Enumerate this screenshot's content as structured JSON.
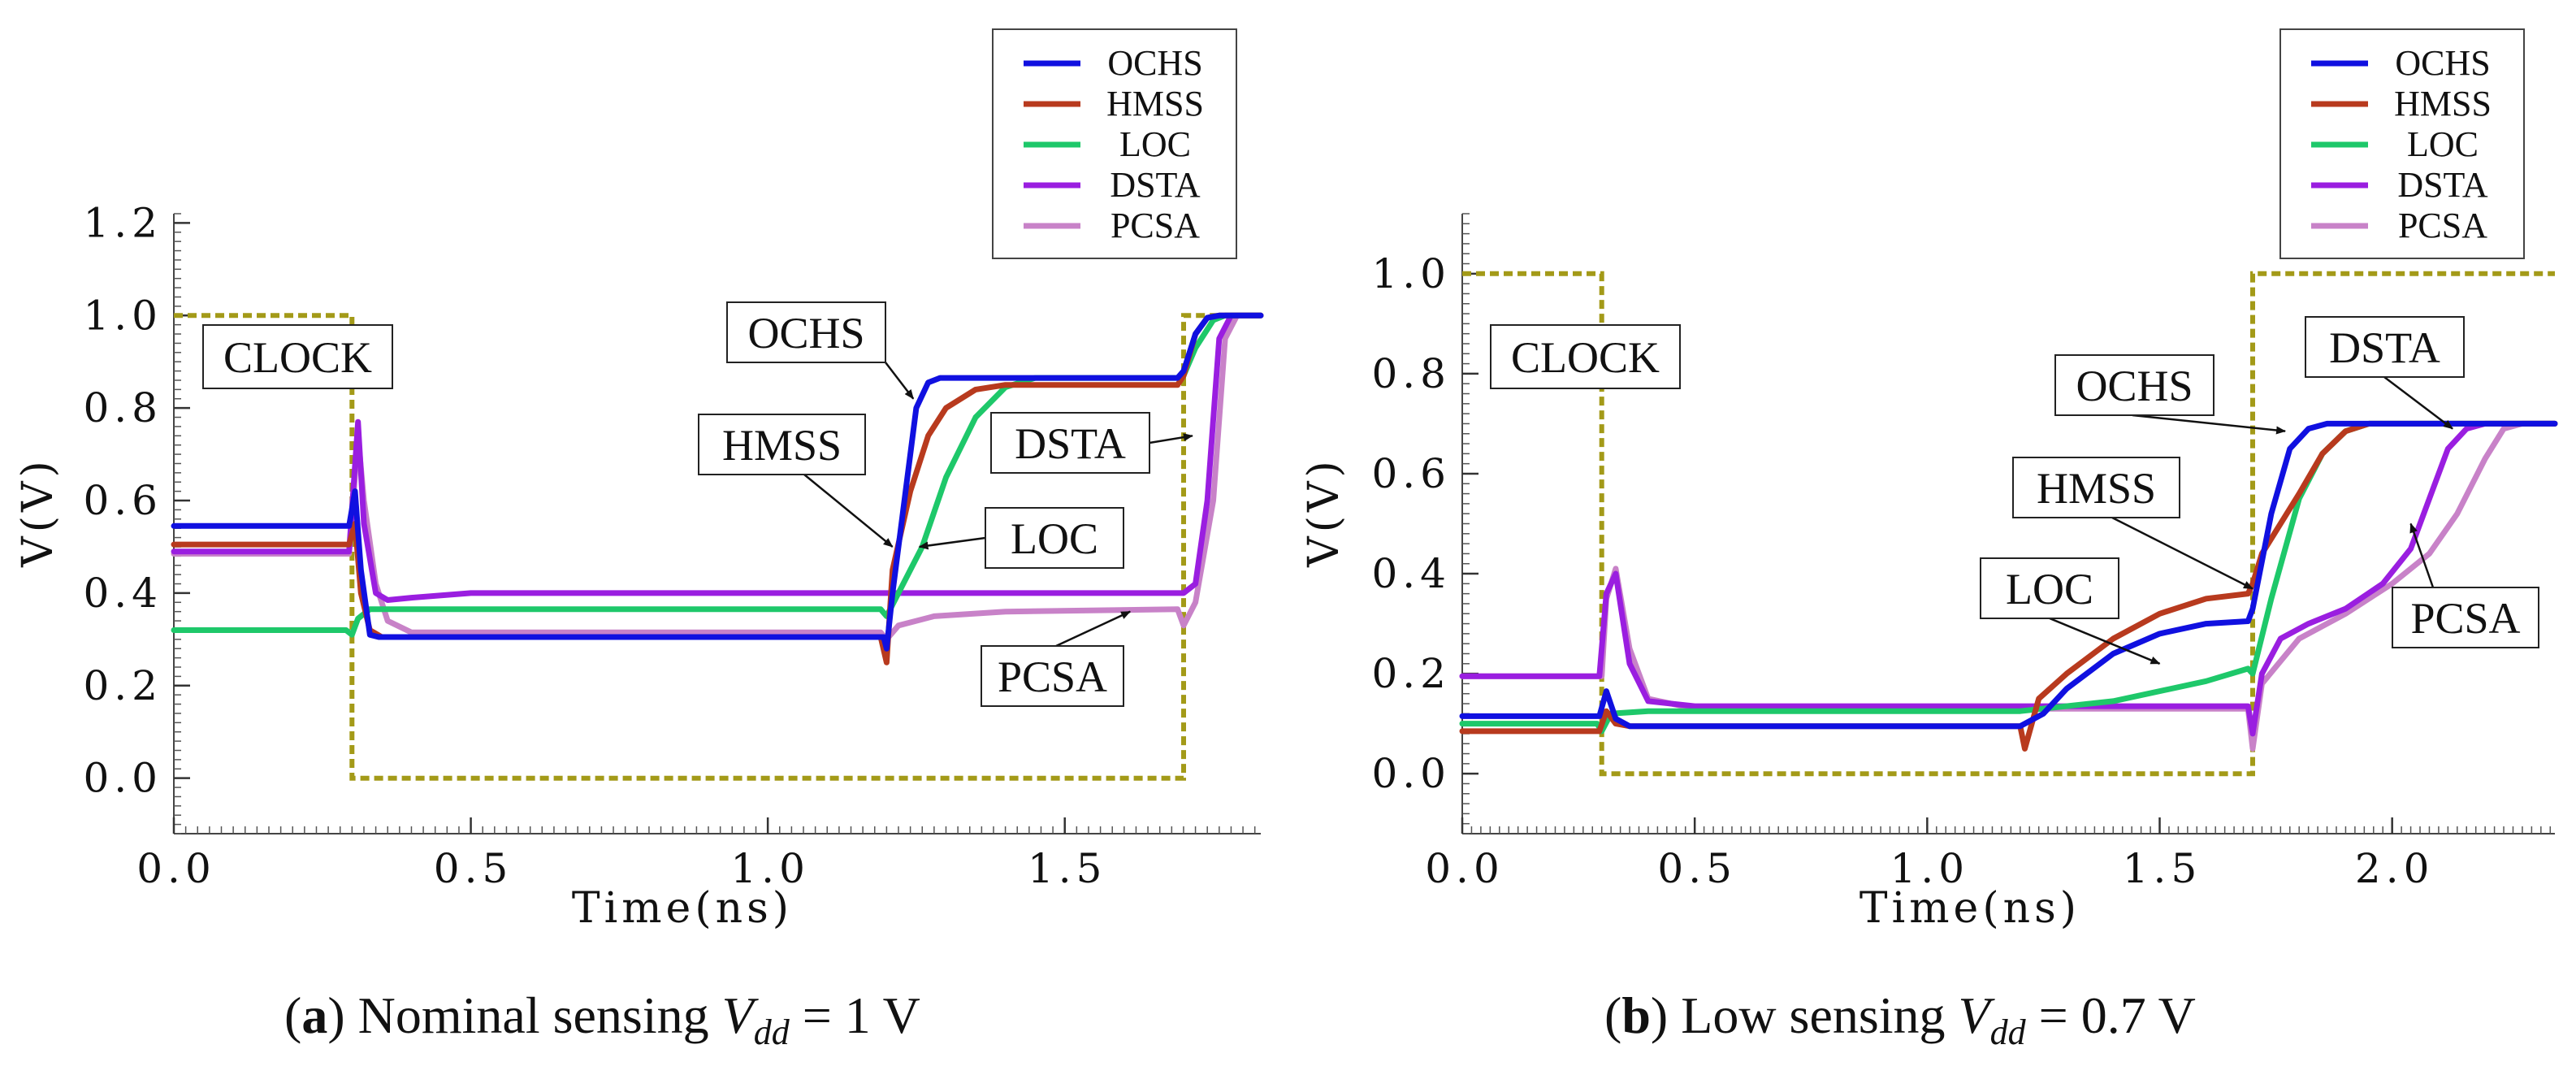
{
  "chart_data": [
    {
      "type": "line",
      "panel_label": "a",
      "caption_text": "Nominal sensing",
      "caption_var": "V",
      "caption_sub": "dd",
      "caption_value": "= 1 V",
      "xlabel": "Time(ns)",
      "ylabel": "V(V)",
      "xlim": [
        0,
        1.83
      ],
      "ylim": [
        -0.12,
        1.22
      ],
      "xticks": [
        0.0,
        0.5,
        1.0,
        1.5
      ],
      "xtick_labels": [
        "0.0",
        "0.5",
        "1.0",
        "1.5"
      ],
      "yticks": [
        0.0,
        0.2,
        0.4,
        0.6,
        0.8,
        1.0,
        1.2
      ],
      "ytick_labels": [
        "0.0",
        "0.2",
        "0.4",
        "0.6",
        "0.8",
        "1.0",
        "1.2"
      ],
      "legend": [
        "OCHS",
        "HMSS",
        "LOC",
        "DSTA",
        "PCSA"
      ],
      "legend_position": "top-right",
      "clock": {
        "name": "CLOCK",
        "color": "#a39a18",
        "x": [
          0,
          0.3,
          0.3,
          1.7,
          1.7,
          1.83
        ],
        "y": [
          1.0,
          1.0,
          0.0,
          0.0,
          1.0,
          1.0
        ]
      },
      "series": [
        {
          "name": "OCHS",
          "color": "#1010e0",
          "x": [
            0,
            0.295,
            0.305,
            0.315,
            0.33,
            0.345,
            0.5,
            1.0,
            1.195,
            1.2,
            1.21,
            1.23,
            1.25,
            1.27,
            1.29,
            1.35,
            1.69,
            1.7,
            1.72,
            1.74,
            1.76,
            1.83
          ],
          "y": [
            0.545,
            0.545,
            0.62,
            0.45,
            0.31,
            0.305,
            0.305,
            0.305,
            0.305,
            0.28,
            0.4,
            0.6,
            0.8,
            0.855,
            0.865,
            0.865,
            0.865,
            0.88,
            0.96,
            0.995,
            1.0,
            1.0
          ]
        },
        {
          "name": "HMSS",
          "color": "#b83a1e",
          "x": [
            0,
            0.295,
            0.305,
            0.315,
            0.33,
            0.35,
            0.5,
            1.0,
            1.19,
            1.2,
            1.21,
            1.24,
            1.27,
            1.3,
            1.35,
            1.4,
            1.69,
            1.7,
            1.72,
            1.74,
            1.76,
            1.83
          ],
          "y": [
            0.505,
            0.505,
            0.55,
            0.4,
            0.32,
            0.305,
            0.305,
            0.305,
            0.305,
            0.25,
            0.45,
            0.62,
            0.74,
            0.8,
            0.84,
            0.85,
            0.85,
            0.87,
            0.96,
            0.995,
            1.0,
            1.0
          ]
        },
        {
          "name": "LOC",
          "color": "#1ec86a",
          "x": [
            0,
            0.29,
            0.3,
            0.31,
            0.33,
            0.4,
            1.0,
            1.19,
            1.2,
            1.22,
            1.26,
            1.3,
            1.35,
            1.4,
            1.45,
            1.69,
            1.7,
            1.72,
            1.75,
            1.77,
            1.83
          ],
          "y": [
            0.32,
            0.32,
            0.31,
            0.345,
            0.365,
            0.365,
            0.365,
            0.365,
            0.35,
            0.4,
            0.5,
            0.65,
            0.78,
            0.845,
            0.865,
            0.865,
            0.87,
            0.93,
            0.99,
            1.0,
            1.0
          ]
        },
        {
          "name": "DSTA",
          "color": "#9a1ee0",
          "x": [
            0,
            0.295,
            0.31,
            0.32,
            0.34,
            0.36,
            0.4,
            0.5,
            1.7,
            1.72,
            1.74,
            1.76,
            1.78,
            1.83
          ],
          "y": [
            0.49,
            0.49,
            0.77,
            0.55,
            0.4,
            0.385,
            0.39,
            0.4,
            0.4,
            0.42,
            0.6,
            0.95,
            1.0,
            1.0
          ]
        },
        {
          "name": "PCSA",
          "color": "#c882c8",
          "x": [
            0,
            0.295,
            0.31,
            0.32,
            0.34,
            0.36,
            0.4,
            1.19,
            1.2,
            1.22,
            1.28,
            1.4,
            1.69,
            1.7,
            1.72,
            1.75,
            1.77,
            1.79,
            1.83
          ],
          "y": [
            0.485,
            0.485,
            0.74,
            0.6,
            0.42,
            0.34,
            0.315,
            0.315,
            0.3,
            0.33,
            0.35,
            0.36,
            0.365,
            0.33,
            0.38,
            0.6,
            0.95,
            1.0,
            1.0
          ]
        }
      ],
      "annotations": [
        {
          "text": "CLOCK",
          "arrow_to": null
        },
        {
          "text": "OCHS",
          "arrow_to": [
            1.245,
            0.82
          ]
        },
        {
          "text": "HMSS",
          "arrow_to": [
            1.21,
            0.5
          ]
        },
        {
          "text": "DSTA",
          "arrow_to": [
            1.715,
            0.74
          ]
        },
        {
          "text": "LOC",
          "arrow_to": [
            1.255,
            0.5
          ]
        },
        {
          "text": "PCSA",
          "arrow_to": [
            1.61,
            0.36
          ]
        }
      ]
    },
    {
      "type": "line",
      "panel_label": "b",
      "caption_text": "Low sensing",
      "caption_var": "V",
      "caption_sub": "dd",
      "caption_value": "= 0.7 V",
      "xlabel": "Time(ns)",
      "ylabel": "V(V)",
      "xlim": [
        0,
        2.35
      ],
      "ylim": [
        -0.12,
        1.12
      ],
      "xticks": [
        0.0,
        0.5,
        1.0,
        1.5,
        2.0
      ],
      "xtick_labels": [
        "0.0",
        "0.5",
        "1.0",
        "1.5",
        "2.0"
      ],
      "yticks": [
        0.0,
        0.2,
        0.4,
        0.6,
        0.8,
        1.0
      ],
      "ytick_labels": [
        "0.0",
        "0.2",
        "0.4",
        "0.6",
        "0.8",
        "1.0"
      ],
      "legend": [
        "OCHS",
        "HMSS",
        "LOC",
        "DSTA",
        "PCSA"
      ],
      "legend_position": "top-right",
      "clock": {
        "name": "CLOCK",
        "color": "#a39a18",
        "x": [
          0,
          0.3,
          0.3,
          1.7,
          1.7,
          2.35
        ],
        "y": [
          1.0,
          1.0,
          0.0,
          0.0,
          1.0,
          1.0
        ]
      },
      "series": [
        {
          "name": "OCHS",
          "color": "#1010e0",
          "x": [
            0,
            0.295,
            0.31,
            0.33,
            0.36,
            1.2,
            1.25,
            1.3,
            1.4,
            1.5,
            1.6,
            1.69,
            1.7,
            1.74,
            1.78,
            1.82,
            1.86,
            1.9,
            2.35
          ],
          "y": [
            0.115,
            0.115,
            0.165,
            0.11,
            0.095,
            0.095,
            0.12,
            0.17,
            0.24,
            0.28,
            0.3,
            0.305,
            0.33,
            0.52,
            0.65,
            0.69,
            0.7,
            0.7,
            0.7
          ]
        },
        {
          "name": "HMSS",
          "color": "#b83a1e",
          "x": [
            0,
            0.295,
            0.31,
            0.33,
            0.36,
            1.2,
            1.21,
            1.24,
            1.3,
            1.4,
            1.5,
            1.6,
            1.69,
            1.7,
            1.72,
            1.76,
            1.8,
            1.85,
            1.9,
            1.95,
            2.35
          ],
          "y": [
            0.085,
            0.085,
            0.125,
            0.1,
            0.095,
            0.095,
            0.05,
            0.15,
            0.2,
            0.27,
            0.32,
            0.35,
            0.36,
            0.38,
            0.44,
            0.5,
            0.56,
            0.64,
            0.685,
            0.7,
            0.7
          ]
        },
        {
          "name": "LOC",
          "color": "#1ec86a",
          "x": [
            0,
            0.29,
            0.3,
            0.32,
            0.4,
            1.2,
            1.4,
            1.6,
            1.69,
            1.7,
            1.74,
            1.8,
            1.85,
            1.9,
            1.95,
            2.0,
            2.35
          ],
          "y": [
            0.1,
            0.1,
            0.085,
            0.12,
            0.125,
            0.125,
            0.145,
            0.185,
            0.21,
            0.2,
            0.35,
            0.55,
            0.64,
            0.685,
            0.7,
            0.7,
            0.7
          ]
        },
        {
          "name": "DSTA",
          "color": "#9a1ee0",
          "x": [
            0,
            0.295,
            0.31,
            0.33,
            0.36,
            0.4,
            0.5,
            1.69,
            1.7,
            1.72,
            1.76,
            1.82,
            1.9,
            1.98,
            2.04,
            2.08,
            2.12,
            2.16,
            2.2,
            2.35
          ],
          "y": [
            0.195,
            0.195,
            0.36,
            0.4,
            0.22,
            0.145,
            0.135,
            0.135,
            0.08,
            0.2,
            0.27,
            0.3,
            0.33,
            0.38,
            0.45,
            0.55,
            0.65,
            0.69,
            0.7,
            0.7
          ]
        },
        {
          "name": "PCSA",
          "color": "#c882c8",
          "x": [
            0,
            0.3,
            0.31,
            0.33,
            0.36,
            0.4,
            0.5,
            1.69,
            1.7,
            1.72,
            1.8,
            1.9,
            2.0,
            2.08,
            2.14,
            2.2,
            2.24,
            2.28,
            2.35
          ],
          "y": [
            0.195,
            0.195,
            0.35,
            0.41,
            0.25,
            0.15,
            0.13,
            0.13,
            0.05,
            0.18,
            0.27,
            0.32,
            0.38,
            0.44,
            0.52,
            0.63,
            0.69,
            0.7,
            0.7
          ]
        }
      ],
      "annotations": [
        {
          "text": "CLOCK",
          "arrow_to": null
        },
        {
          "text": "OCHS",
          "arrow_to": [
            1.77,
            0.685
          ]
        },
        {
          "text": "DSTA",
          "arrow_to": [
            2.13,
            0.69
          ]
        },
        {
          "text": "HMSS",
          "arrow_to": [
            1.7,
            0.37
          ]
        },
        {
          "text": "LOC",
          "arrow_to": [
            1.5,
            0.22
          ]
        },
        {
          "text": "PCSA",
          "arrow_to": [
            2.04,
            0.5
          ]
        }
      ]
    }
  ]
}
